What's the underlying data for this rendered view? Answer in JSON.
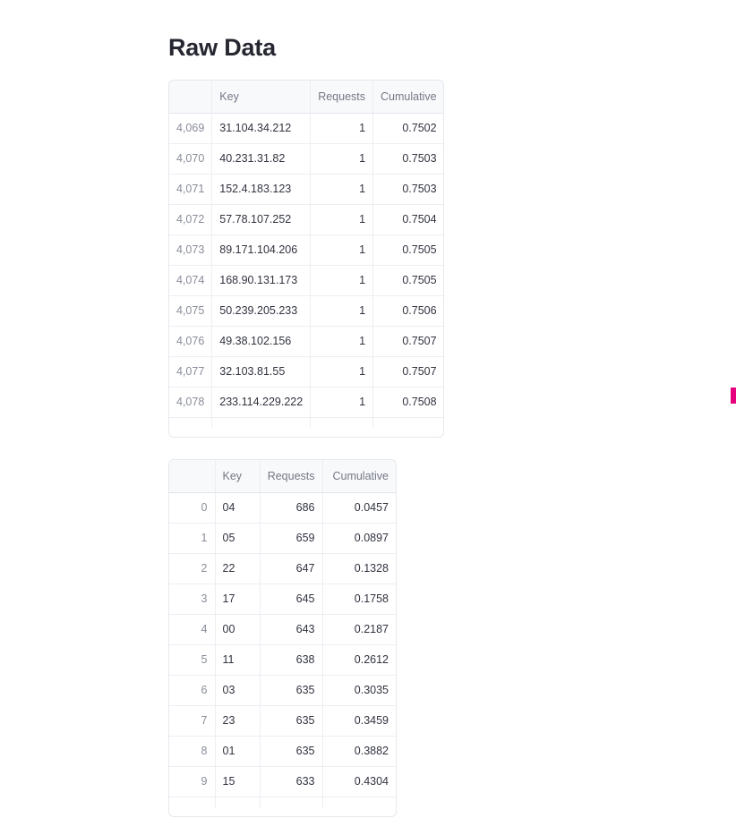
{
  "title": "Raw Data",
  "table1": {
    "columns": [
      "",
      "Key",
      "Requests",
      "Cumulative"
    ],
    "rows": [
      {
        "index": "4,069",
        "key": "31.104.34.212",
        "requests": "1",
        "cumulative": "0.7502"
      },
      {
        "index": "4,070",
        "key": "40.231.31.82",
        "requests": "1",
        "cumulative": "0.7503"
      },
      {
        "index": "4,071",
        "key": "152.4.183.123",
        "requests": "1",
        "cumulative": "0.7503"
      },
      {
        "index": "4,072",
        "key": "57.78.107.252",
        "requests": "1",
        "cumulative": "0.7504"
      },
      {
        "index": "4,073",
        "key": "89.171.104.206",
        "requests": "1",
        "cumulative": "0.7505"
      },
      {
        "index": "4,074",
        "key": "168.90.131.173",
        "requests": "1",
        "cumulative": "0.7505"
      },
      {
        "index": "4,075",
        "key": "50.239.205.233",
        "requests": "1",
        "cumulative": "0.7506"
      },
      {
        "index": "4,076",
        "key": "49.38.102.156",
        "requests": "1",
        "cumulative": "0.7507"
      },
      {
        "index": "4,077",
        "key": "32.103.81.55",
        "requests": "1",
        "cumulative": "0.7507"
      },
      {
        "index": "4,078",
        "key": "233.114.229.222",
        "requests": "1",
        "cumulative": "0.7508"
      }
    ]
  },
  "table2": {
    "columns": [
      "",
      "Key",
      "Requests",
      "Cumulative"
    ],
    "rows": [
      {
        "index": "0",
        "key": "04",
        "requests": "686",
        "cumulative": "0.0457"
      },
      {
        "index": "1",
        "key": "05",
        "requests": "659",
        "cumulative": "0.0897"
      },
      {
        "index": "2",
        "key": "22",
        "requests": "647",
        "cumulative": "0.1328"
      },
      {
        "index": "3",
        "key": "17",
        "requests": "645",
        "cumulative": "0.1758"
      },
      {
        "index": "4",
        "key": "00",
        "requests": "643",
        "cumulative": "0.2187"
      },
      {
        "index": "5",
        "key": "11",
        "requests": "638",
        "cumulative": "0.2612"
      },
      {
        "index": "6",
        "key": "03",
        "requests": "635",
        "cumulative": "0.3035"
      },
      {
        "index": "7",
        "key": "23",
        "requests": "635",
        "cumulative": "0.3459"
      },
      {
        "index": "8",
        "key": "01",
        "requests": "635",
        "cumulative": "0.3882"
      },
      {
        "index": "9",
        "key": "15",
        "requests": "633",
        "cumulative": "0.4304"
      }
    ]
  },
  "colors": {
    "accent": "#e6007e",
    "header_bg": "#f8f9fb",
    "border": "#e6e8ee"
  }
}
